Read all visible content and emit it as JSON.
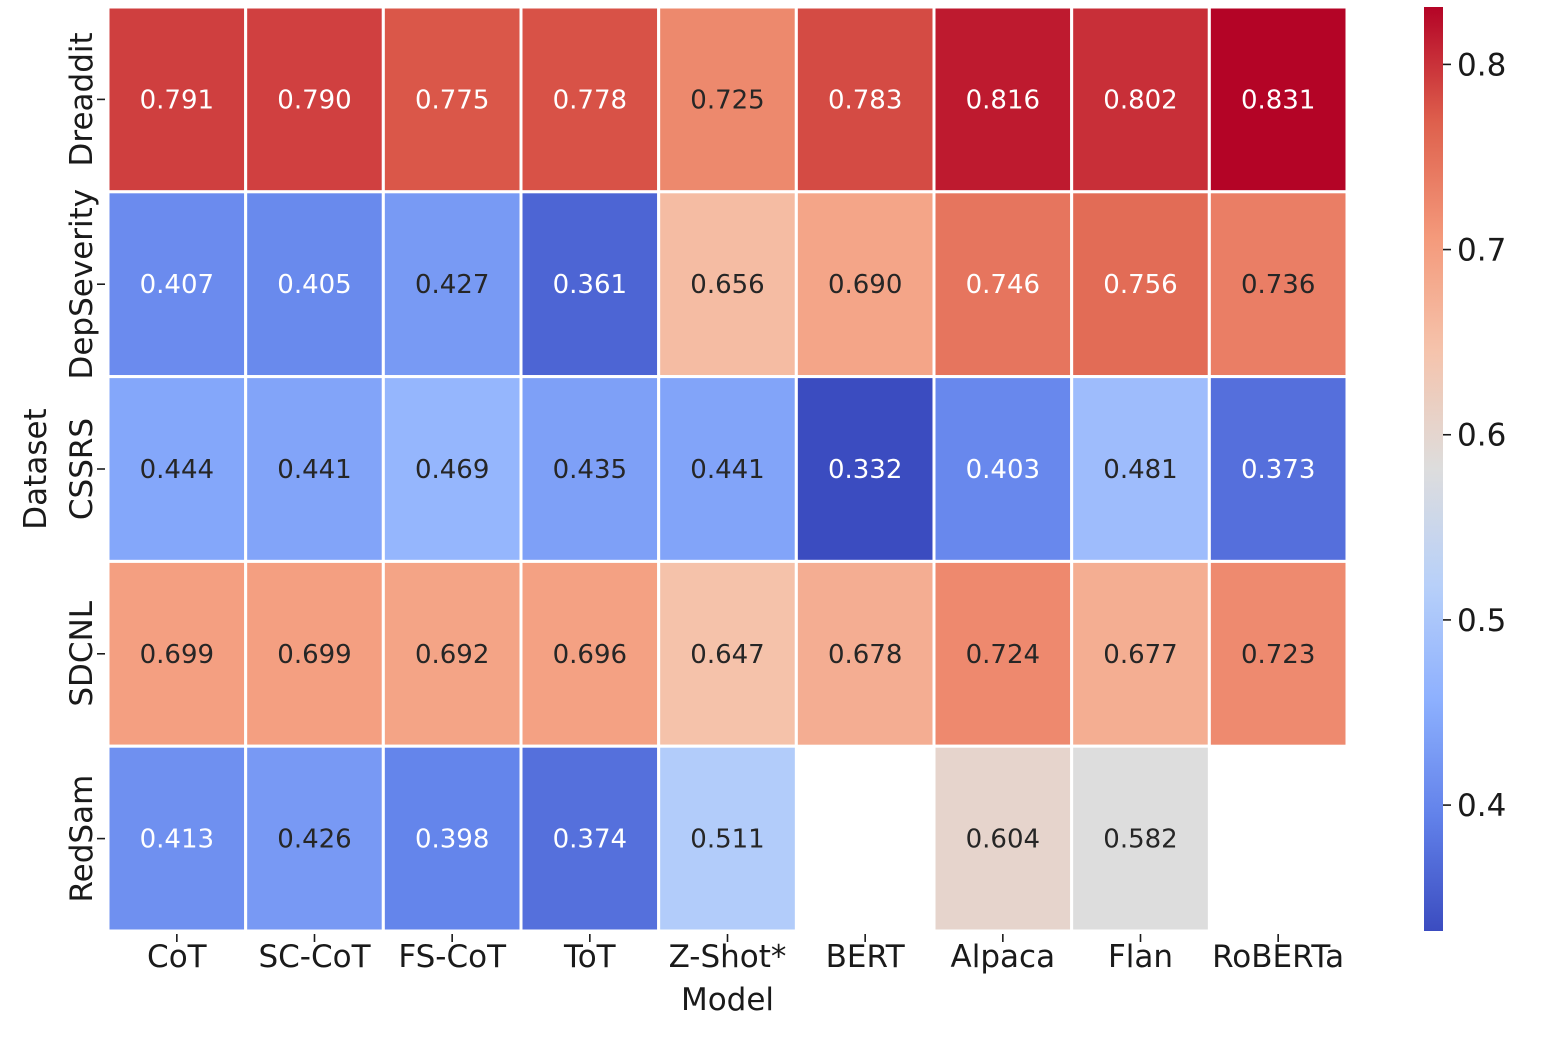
{
  "chart_data": {
    "type": "heatmap",
    "title": "",
    "xlabel": "Model",
    "ylabel": "Dataset",
    "x_categories": [
      "CoT",
      "SC-CoT",
      "FS-CoT",
      "ToT",
      "Z-Shot*",
      "BERT",
      "Alpaca",
      "Flan",
      "RoBERTa"
    ],
    "y_categories": [
      "Dreaddit",
      "DepSeverity",
      "CSSRS",
      "SDCNL",
      "RedSam"
    ],
    "values": [
      [
        0.791,
        0.79,
        0.775,
        0.778,
        0.725,
        0.783,
        0.816,
        0.802,
        0.831
      ],
      [
        0.407,
        0.405,
        0.427,
        0.361,
        0.656,
        0.69,
        0.746,
        0.756,
        0.736
      ],
      [
        0.444,
        0.441,
        0.469,
        0.435,
        0.441,
        0.332,
        0.403,
        0.481,
        0.373
      ],
      [
        0.699,
        0.699,
        0.692,
        0.696,
        0.647,
        0.678,
        0.724,
        0.677,
        0.723
      ],
      [
        0.413,
        0.426,
        0.398,
        0.374,
        0.511,
        null,
        0.604,
        0.582,
        null
      ]
    ],
    "cell_labels": [
      [
        "0.791",
        "0.790",
        "0.775",
        "0.778",
        "0.725",
        "0.783",
        "0.816",
        "0.802",
        "0.831"
      ],
      [
        "0.407",
        "0.405",
        "0.427",
        "0.361",
        "0.656",
        "0.690",
        "0.746",
        "0.756",
        "0.736"
      ],
      [
        "0.444",
        "0.441",
        "0.469",
        "0.435",
        "0.441",
        "0.332",
        "0.403",
        "0.481",
        "0.373"
      ],
      [
        "0.699",
        "0.699",
        "0.692",
        "0.696",
        "0.647",
        "0.678",
        "0.724",
        "0.677",
        "0.723"
      ],
      [
        "0.413",
        "0.426",
        "0.398",
        "0.374",
        "0.511",
        null,
        "0.604",
        "0.582",
        null
      ]
    ],
    "colormap": "coolwarm",
    "vmin": 0.332,
    "vmax": 0.831,
    "colorbar": {
      "ticks": [
        0.4,
        0.5,
        0.6,
        0.7,
        0.8
      ],
      "tick_labels": [
        "0.4",
        "0.5",
        "0.6",
        "0.7",
        "0.8"
      ],
      "placement": "right"
    },
    "grid": false,
    "cell_border_color": "#ffffff",
    "text_color_dark": "#262626",
    "text_color_light": "#ffffff"
  }
}
